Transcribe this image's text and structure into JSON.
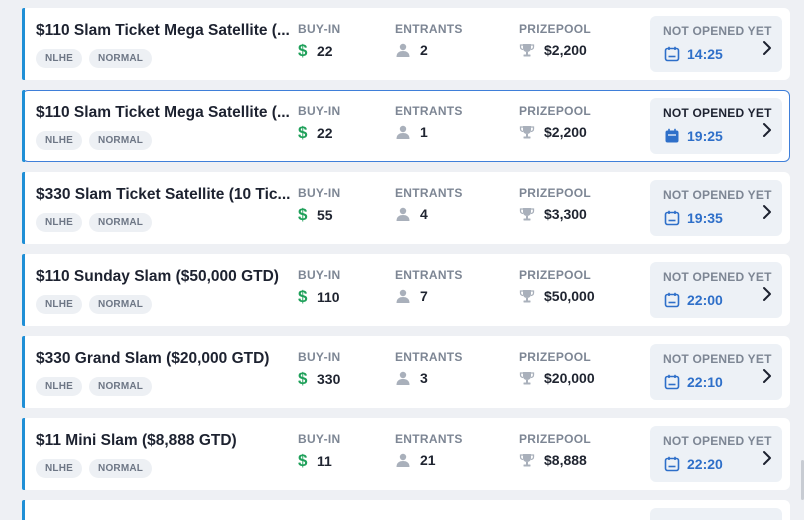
{
  "columns": {
    "buyin_label": "BUY-IN",
    "entrants_label": "ENTRANTS",
    "prize_label": "PRIZEPOOL"
  },
  "colors": {
    "accent": "#1f8fd6",
    "selected_border": "#3f7fd9",
    "money_green": "#1fa05a",
    "time_blue": "#2e6fc9"
  },
  "icons": {
    "buyin": "dollar-icon",
    "entrants": "user-icon",
    "prize": "trophy-icon",
    "time": "calendar-icon",
    "open": "chevron-right-icon"
  },
  "tournaments": [
    {
      "title": "$110 Slam Ticket Mega Satellite (...",
      "tags": [
        "NLHE",
        "NORMAL"
      ],
      "buyin": "22",
      "entrants": "2",
      "prizepool": "$2,200",
      "status": "NOT OPENED YET",
      "time": "14:25",
      "selected": false
    },
    {
      "title": "$110 Slam Ticket Mega Satellite (...",
      "tags": [
        "NLHE",
        "NORMAL"
      ],
      "buyin": "22",
      "entrants": "1",
      "prizepool": "$2,200",
      "status": "NOT OPENED YET",
      "time": "19:25",
      "selected": true
    },
    {
      "title": "$330 Slam Ticket Satellite (10 Tic...",
      "tags": [
        "NLHE",
        "NORMAL"
      ],
      "buyin": "55",
      "entrants": "4",
      "prizepool": "$3,300",
      "status": "NOT OPENED YET",
      "time": "19:35",
      "selected": false
    },
    {
      "title": "$110 Sunday Slam ($50,000 GTD)",
      "tags": [
        "NLHE",
        "NORMAL"
      ],
      "buyin": "110",
      "entrants": "7",
      "prizepool": "$50,000",
      "status": "NOT OPENED YET",
      "time": "22:00",
      "selected": false
    },
    {
      "title": "$330 Grand Slam ($20,000 GTD)",
      "tags": [
        "NLHE",
        "NORMAL"
      ],
      "buyin": "330",
      "entrants": "3",
      "prizepool": "$20,000",
      "status": "NOT OPENED YET",
      "time": "22:10",
      "selected": false
    },
    {
      "title": "$11 Mini Slam ($8,888 GTD)",
      "tags": [
        "NLHE",
        "NORMAL"
      ],
      "buyin": "11",
      "entrants": "21",
      "prizepool": "$8,888",
      "status": "NOT OPENED YET",
      "time": "22:20",
      "selected": false
    }
  ]
}
